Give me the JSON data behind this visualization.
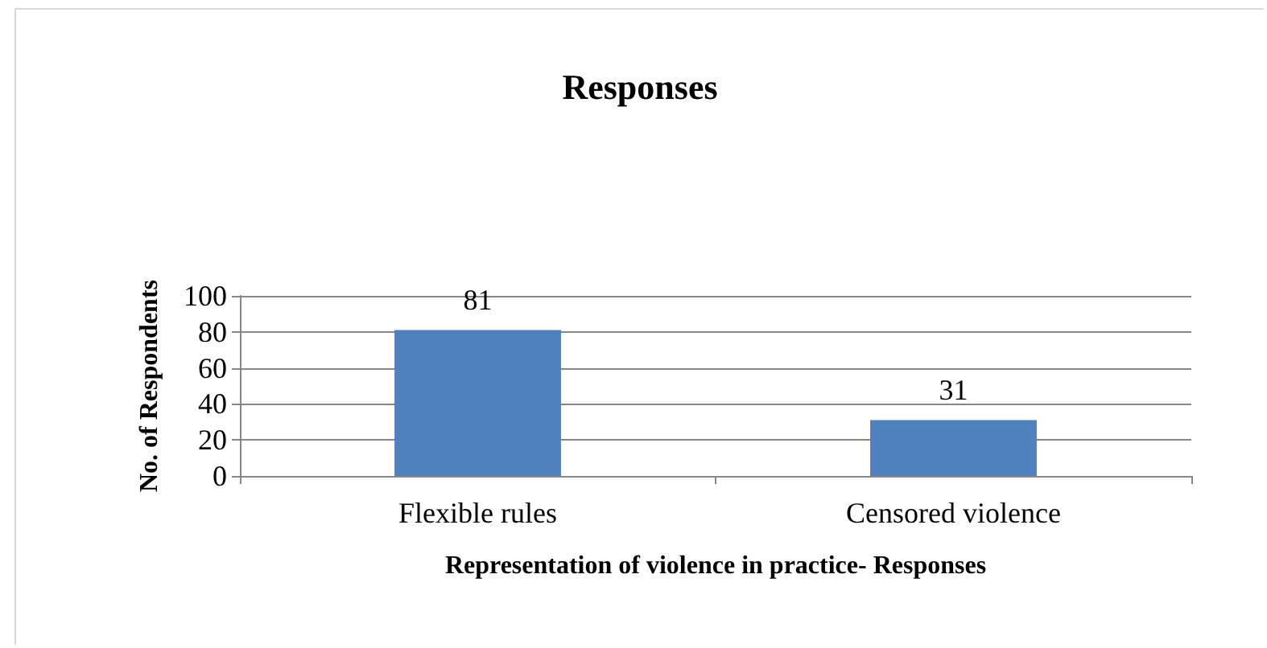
{
  "chart_data": {
    "type": "bar",
    "title": "Responses",
    "xlabel": "Representation of violence in practice- Responses",
    "ylabel": "No. of Respondents",
    "categories": [
      "Flexible rules",
      "Censored violence"
    ],
    "values": [
      81,
      31
    ],
    "color": "#4f81bd",
    "ylim": [
      0,
      100
    ],
    "yticks": [
      0,
      20,
      40,
      60,
      80,
      100
    ],
    "grid": "y",
    "data_labels": true
  }
}
